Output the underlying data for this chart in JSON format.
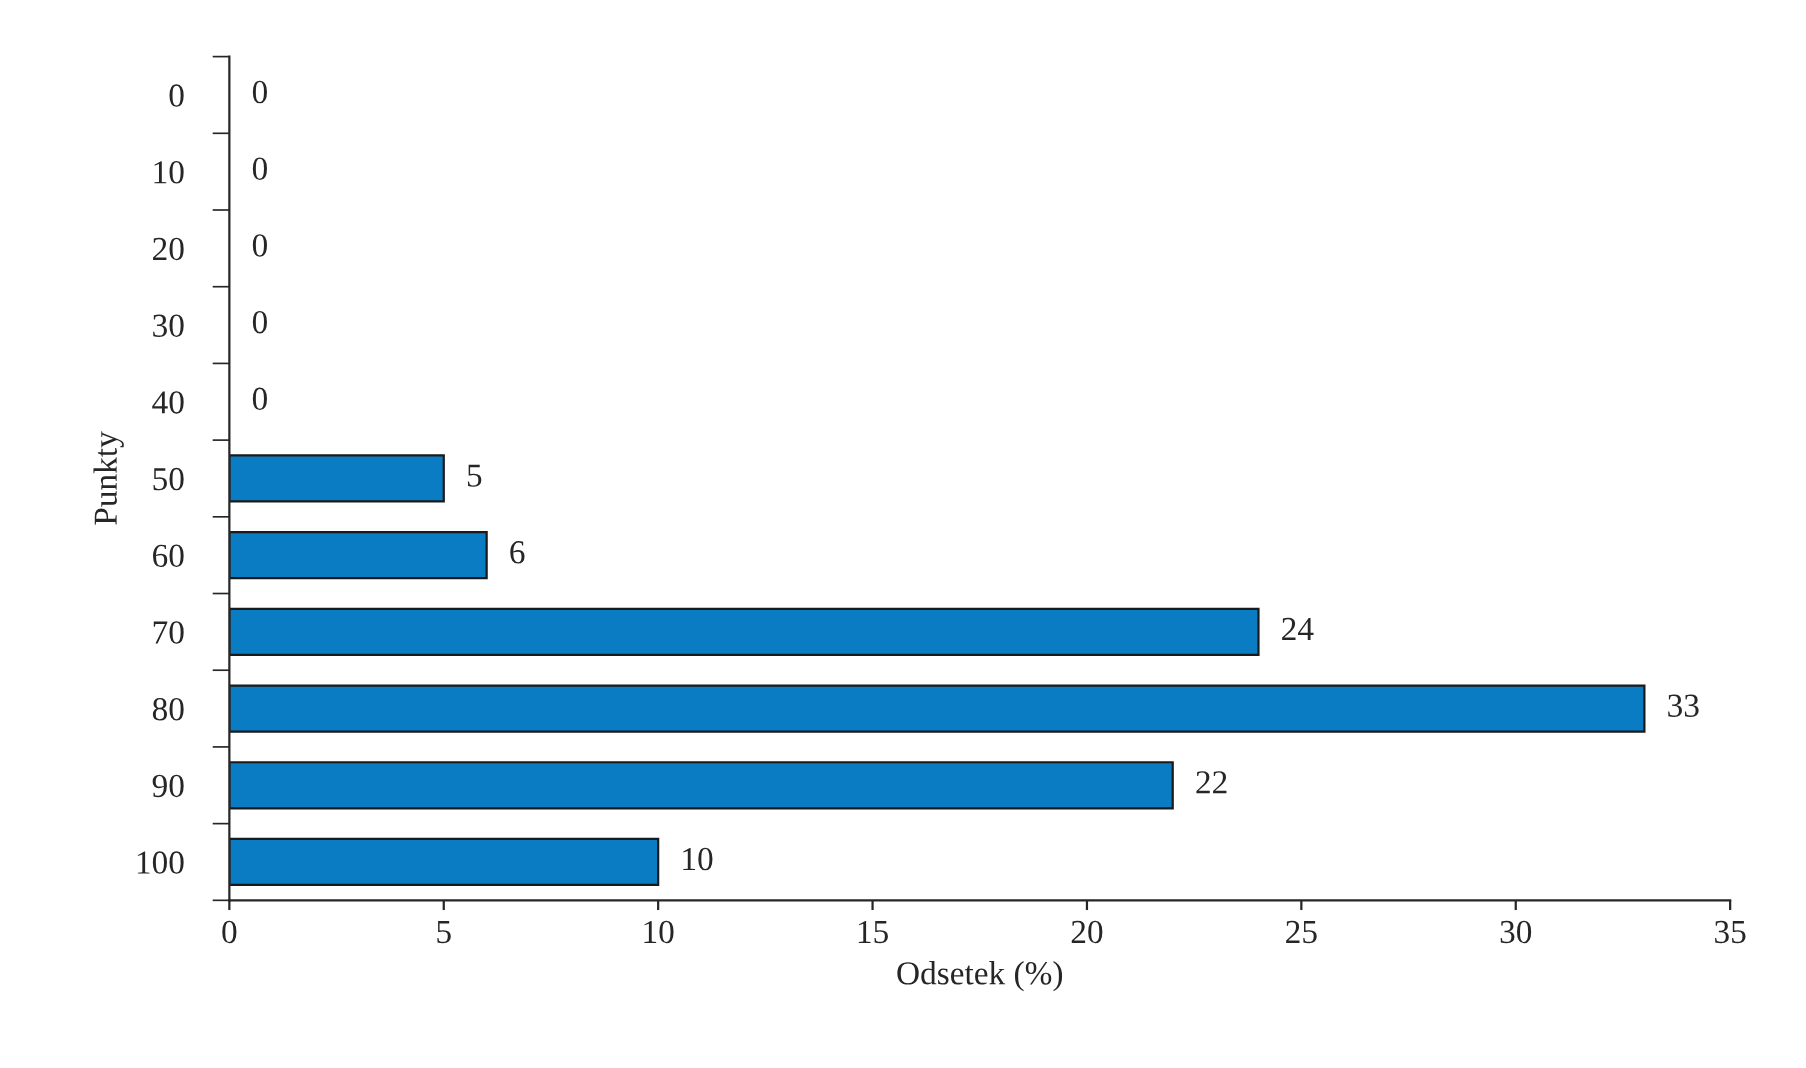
{
  "chart_data": {
    "type": "bar",
    "orientation": "horizontal",
    "xlabel": "Odsetek (%)",
    "ylabel": "Punkty",
    "categories": [
      "0",
      "10",
      "20",
      "30",
      "40",
      "50",
      "60",
      "70",
      "80",
      "90",
      "100"
    ],
    "values": [
      0,
      0,
      0,
      0,
      0,
      5,
      6,
      24,
      33,
      22,
      10
    ],
    "color": "#0a7cc4",
    "data_labels": true,
    "xlim": [
      0,
      35
    ],
    "xticks": [
      0,
      5,
      10,
      15,
      20,
      25,
      30,
      35
    ],
    "grid": false,
    "legend": false
  }
}
